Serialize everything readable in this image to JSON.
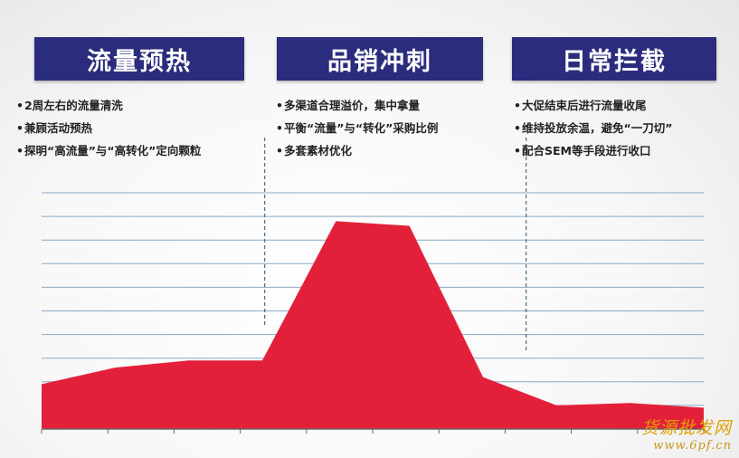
{
  "phases": [
    {
      "title": "流量预热",
      "notes": [
        "2周左右的流量清洗",
        "兼顾活动预热",
        "探明“高流量”与“高转化”定向颗粒"
      ]
    },
    {
      "title": "品销冲刺",
      "notes": [
        "多渠道合理溢价，集中拿量",
        "平衡“流量”与“转化”采购比例",
        "多套素材优化"
      ]
    },
    {
      "title": "日常拦截",
      "notes": [
        "大促结束后进行流量收尾",
        "维持投放余温，避免“一刀切”",
        "配合SEM等手段进行收口"
      ]
    }
  ],
  "chart_data": {
    "type": "area",
    "x": [
      0,
      1,
      2,
      3,
      4,
      5,
      6,
      7,
      8,
      9
    ],
    "values": [
      1.9,
      2.6,
      2.9,
      2.9,
      8.8,
      8.6,
      2.2,
      1.0,
      1.1,
      0.9
    ],
    "ylim": [
      0,
      10
    ],
    "grid": true,
    "fill_color": "#e3203a",
    "phase_dividers_after_x": [
      3,
      6
    ]
  },
  "colors": {
    "title_bg": "#2b2c7d",
    "title_text": "#ffffff",
    "area": "#e3203a",
    "gridline": "#8aa8c4",
    "divider": "#4a6a8a"
  },
  "watermark": {
    "name": "货源批发网",
    "url": "www.6pf.cn"
  }
}
